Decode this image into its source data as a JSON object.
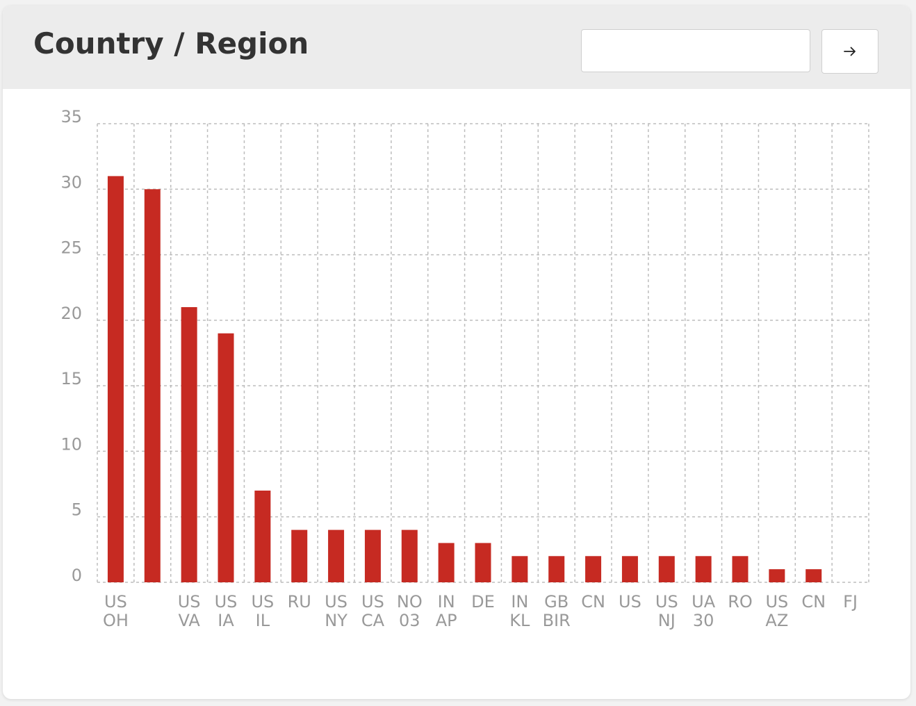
{
  "header": {
    "title": "Country / Region",
    "search_value": "",
    "search_placeholder": "",
    "go_icon": "arrow-right-icon"
  },
  "colors": {
    "bar": "#c62a22",
    "grid": "#bdbdbd",
    "tick": "#999999"
  },
  "chart_data": {
    "type": "bar",
    "title": "Country / Region",
    "xlabel": "",
    "ylabel": "",
    "ylim": [
      0,
      35
    ],
    "yticks": [
      0,
      5,
      10,
      15,
      20,
      25,
      30,
      35
    ],
    "grid": true,
    "legend": "none",
    "categories": [
      [
        "US",
        "OH"
      ],
      [],
      [
        "US",
        "VA"
      ],
      [
        "US",
        "IA"
      ],
      [
        "US",
        "IL"
      ],
      [
        "RU"
      ],
      [
        "US",
        "NY"
      ],
      [
        "US",
        "CA"
      ],
      [
        "NO",
        "03"
      ],
      [
        "IN",
        "AP"
      ],
      [
        "DE"
      ],
      [
        "IN",
        "KL"
      ],
      [
        "GB",
        "BIR"
      ],
      [
        "CN"
      ],
      [
        "US"
      ],
      [
        "US",
        "NJ"
      ],
      [
        "UA",
        "30"
      ],
      [
        "RO"
      ],
      [
        "US",
        "AZ"
      ],
      [
        "CN"
      ],
      [
        "FJ"
      ]
    ],
    "values": [
      31,
      30,
      21,
      19,
      7,
      4,
      4,
      4,
      4,
      3,
      3,
      2,
      2,
      2,
      2,
      2,
      2,
      2,
      1,
      1,
      0
    ]
  }
}
